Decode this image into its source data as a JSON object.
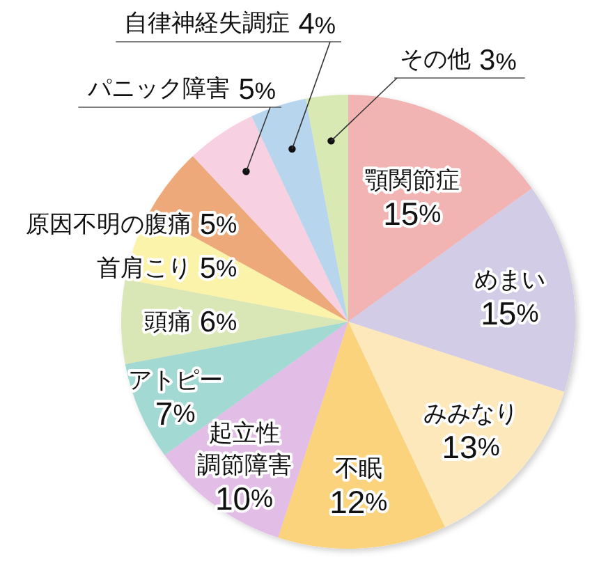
{
  "chart_data": {
    "type": "pie",
    "categories": [
      "顎関節症",
      "めまい",
      "みみなり",
      "不眠",
      "起立性調節障害",
      "アトピー",
      "頭痛",
      "首肩こり",
      "原因不明の腹痛",
      "パニック障害",
      "自律神経失調症",
      "その他"
    ],
    "values": [
      15,
      15,
      13,
      12,
      10,
      7,
      6,
      5,
      5,
      5,
      4,
      3
    ],
    "value_labels": [
      "15%",
      "15%",
      "13%",
      "12%",
      "10%",
      "7%",
      "6%",
      "5%",
      "5%",
      "5%",
      "4%",
      "3%"
    ],
    "colors": [
      "#f2b3b3",
      "#d3cce6",
      "#fde8bc",
      "#fbd37c",
      "#e2bde6",
      "#a3d9d3",
      "#d9e6b5",
      "#fbf3a9",
      "#eea97a",
      "#f7d0e2",
      "#b8d5ee",
      "#d8e9b4"
    ]
  }
}
